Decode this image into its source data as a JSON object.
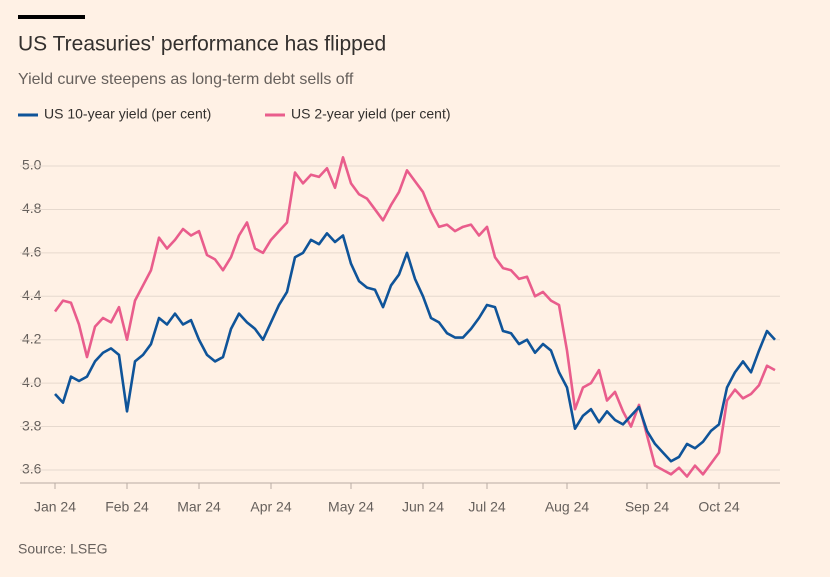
{
  "chart_data": {
    "type": "line",
    "title": "US Treasuries' performance has flipped",
    "subtitle": "Yield curve steepens as long-term debt sells off",
    "source": "Source: LSEG",
    "categories": [
      "Jan 24",
      null,
      null,
      null,
      null,
      null,
      null,
      null,
      null,
      "Feb 24",
      null,
      null,
      null,
      null,
      null,
      null,
      null,
      null,
      "Mar 24",
      null,
      null,
      null,
      null,
      null,
      null,
      null,
      null,
      "Apr 24",
      null,
      null,
      null,
      null,
      null,
      null,
      null,
      null,
      null,
      "May 24",
      null,
      null,
      null,
      null,
      null,
      null,
      null,
      null,
      "Jun 24",
      null,
      null,
      null,
      null,
      null,
      null,
      null,
      "Jul 24",
      null,
      null,
      null,
      null,
      null,
      null,
      null,
      null,
      null,
      "Aug 24",
      null,
      null,
      null,
      null,
      null,
      null,
      null,
      null,
      null,
      "Sep 24",
      null,
      null,
      null,
      null,
      null,
      null,
      null,
      null,
      "Oct 24",
      null,
      null,
      null,
      null,
      null,
      null,
      null
    ],
    "series": [
      {
        "name": "US 10-year yield (per cent)",
        "color": "#0f5499",
        "values": [
          3.95,
          3.91,
          4.03,
          4.01,
          4.03,
          4.1,
          4.14,
          4.16,
          4.13,
          3.87,
          4.1,
          4.13,
          4.18,
          4.3,
          4.27,
          4.32,
          4.27,
          4.29,
          4.2,
          4.13,
          4.1,
          4.12,
          4.25,
          4.32,
          4.28,
          4.25,
          4.2,
          4.28,
          4.36,
          4.42,
          4.58,
          4.6,
          4.66,
          4.64,
          4.69,
          4.65,
          4.68,
          4.55,
          4.47,
          4.44,
          4.43,
          4.35,
          4.45,
          4.5,
          4.6,
          4.48,
          4.4,
          4.3,
          4.28,
          4.23,
          4.21,
          4.21,
          4.25,
          4.3,
          4.36,
          4.35,
          4.24,
          4.23,
          4.18,
          4.2,
          4.14,
          4.18,
          4.15,
          4.05,
          3.98,
          3.79,
          3.85,
          3.88,
          3.82,
          3.87,
          3.83,
          3.81,
          3.85,
          3.89,
          3.78,
          3.72,
          3.68,
          3.64,
          3.66,
          3.72,
          3.7,
          3.73,
          3.78,
          3.81,
          3.98,
          4.05,
          4.1,
          4.05,
          4.15,
          4.24,
          4.2
        ]
      },
      {
        "name": "US 2-year yield (per cent)",
        "color": "#e95d8c",
        "values": [
          4.33,
          4.38,
          4.37,
          4.27,
          4.12,
          4.26,
          4.3,
          4.28,
          4.35,
          4.2,
          4.38,
          4.45,
          4.52,
          4.67,
          4.62,
          4.66,
          4.71,
          4.68,
          4.7,
          4.59,
          4.57,
          4.52,
          4.58,
          4.68,
          4.74,
          4.62,
          4.6,
          4.66,
          4.7,
          4.74,
          4.97,
          4.92,
          4.96,
          4.95,
          4.99,
          4.9,
          5.04,
          4.92,
          4.87,
          4.85,
          4.8,
          4.75,
          4.82,
          4.88,
          4.98,
          4.93,
          4.88,
          4.79,
          4.72,
          4.73,
          4.7,
          4.72,
          4.73,
          4.68,
          4.72,
          4.58,
          4.53,
          4.52,
          4.48,
          4.49,
          4.4,
          4.42,
          4.38,
          4.36,
          4.15,
          3.88,
          3.98,
          4.0,
          4.06,
          3.92,
          3.96,
          3.87,
          3.8,
          3.9,
          3.76,
          3.62,
          3.6,
          3.58,
          3.61,
          3.57,
          3.62,
          3.58,
          3.63,
          3.68,
          3.92,
          3.97,
          3.93,
          3.95,
          3.99,
          4.08,
          4.06
        ]
      }
    ],
    "ylim": [
      3.54,
      5.06
    ],
    "yticks": [
      3.6,
      3.8,
      {
        "value": 4,
        "label": "4.0"
      },
      4.2,
      4.4,
      4.6,
      4.8,
      {
        "value": 5,
        "label": "5.0"
      }
    ],
    "grid": true
  }
}
